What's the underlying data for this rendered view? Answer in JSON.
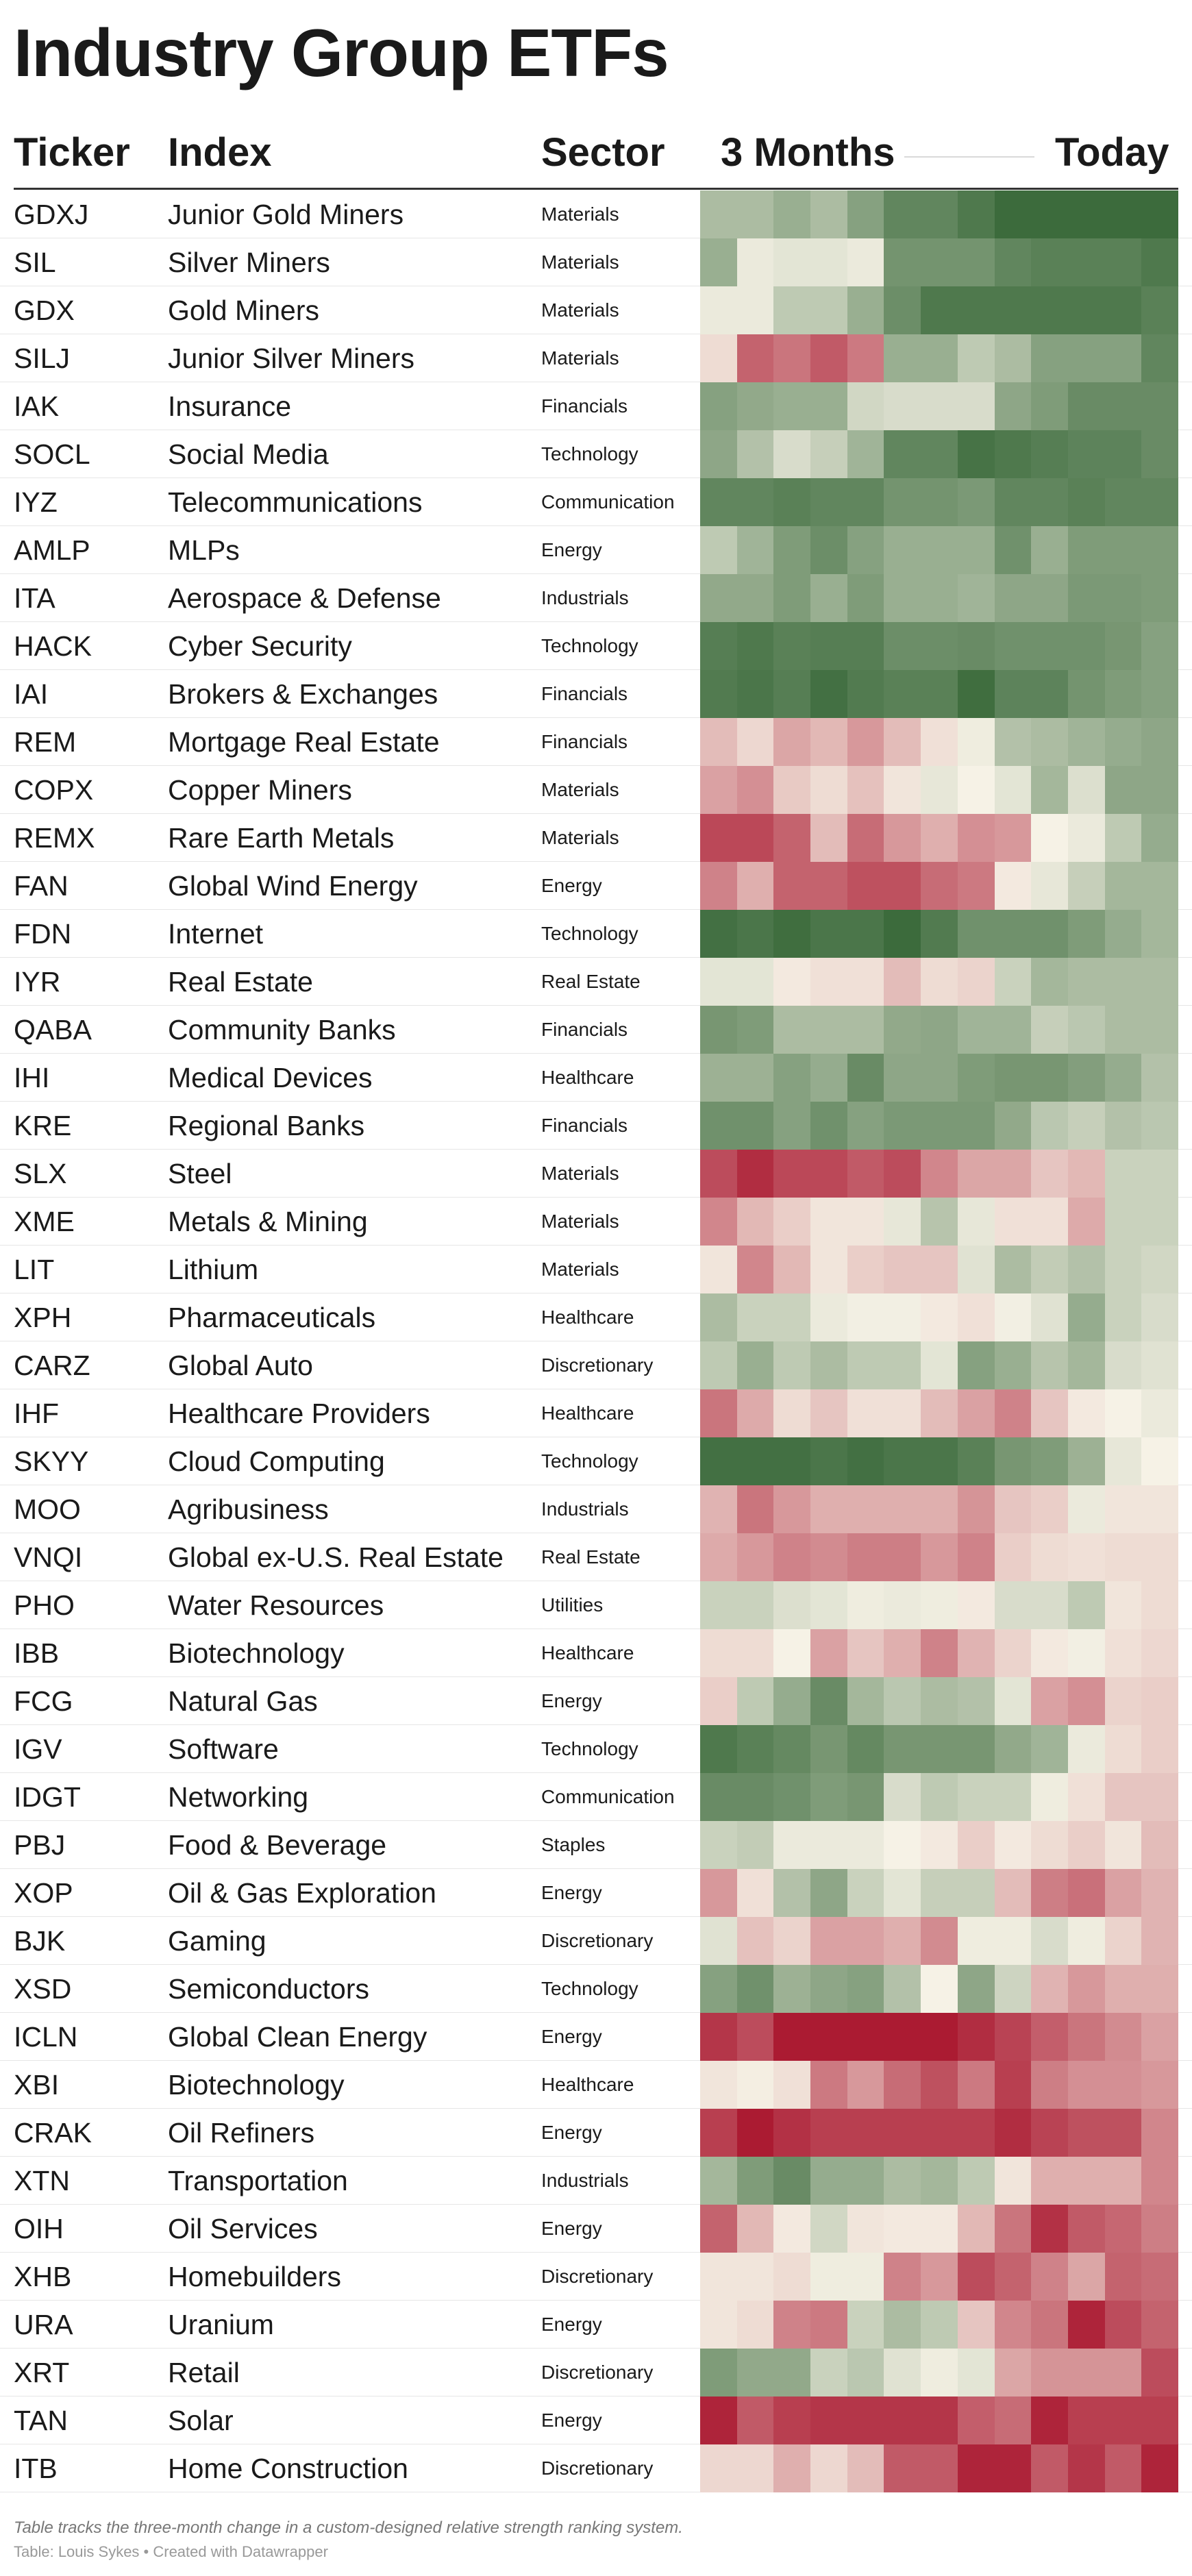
{
  "title": "Industry Group ETFs",
  "header": {
    "ticker": "Ticker",
    "index": "Index",
    "sector": "Sector",
    "start": "3 Months",
    "end": "Today"
  },
  "footnote": "Table tracks the three-month change in a custom-designed relative strength ranking system.",
  "credit": "Table: Louis Sykes • Created with Datawrapper",
  "chart_data": {
    "type": "heatmap",
    "x_start_label": "3 Months",
    "x_end_label": "Today",
    "periods": 13,
    "value_scale": {
      "min": 0,
      "max": 10,
      "low_color": "#a8122b",
      "mid_color": "#f6f2e6",
      "high_color": "#3c6b3c"
    },
    "rows": [
      {
        "ticker": "GDXJ",
        "index": "Junior Gold Miners",
        "sector": "Materials",
        "values": [
          7,
          7,
          7.5,
          7,
          8,
          9,
          9,
          9.5,
          10,
          10,
          10,
          10,
          10
        ]
      },
      {
        "ticker": "SIL",
        "index": "Silver Miners",
        "sector": "Materials",
        "values": [
          7.5,
          5.3,
          5.5,
          5.5,
          5.3,
          8.5,
          8.5,
          8.5,
          9,
          9.2,
          9.2,
          9.2,
          9.5
        ]
      },
      {
        "ticker": "GDX",
        "index": "Gold Miners",
        "sector": "Materials",
        "values": [
          5.3,
          5.3,
          6.5,
          6.5,
          7.5,
          8.7,
          9.5,
          9.5,
          9.5,
          9.5,
          9.5,
          9.5,
          9.2
        ]
      },
      {
        "ticker": "SILJ",
        "index": "Junior Silver Miners",
        "sector": "Materials",
        "values": [
          4.5,
          1.8,
          2.2,
          1.6,
          2.3,
          7.5,
          7.5,
          6.5,
          7,
          8,
          8,
          8,
          9
        ]
      },
      {
        "ticker": "IAK",
        "index": "Insurance",
        "sector": "Financials",
        "values": [
          8,
          7.7,
          7.5,
          7.5,
          6,
          5.8,
          5.8,
          5.8,
          7.8,
          8.2,
          8.8,
          8.8,
          8.8
        ]
      },
      {
        "ticker": "SOCL",
        "index": "Social Media",
        "sector": "Technology",
        "values": [
          7.8,
          6.8,
          5.8,
          6.3,
          7.3,
          9,
          9,
          9.7,
          9.5,
          9.3,
          9.1,
          9.1,
          8.8
        ]
      },
      {
        "ticker": "IYZ",
        "index": "Telecommunications",
        "sector": "Communication",
        "values": [
          9,
          9,
          9.2,
          9,
          9,
          8.5,
          8.5,
          8.3,
          9,
          9,
          9.2,
          9,
          9
        ]
      },
      {
        "ticker": "AMLP",
        "index": "MLPs",
        "sector": "Energy",
        "values": [
          6.5,
          7.3,
          8.2,
          8.7,
          8,
          7.5,
          7.5,
          7.5,
          8.6,
          7.5,
          8.2,
          8.2,
          8.2
        ]
      },
      {
        "ticker": "ITA",
        "index": "Aerospace & Defense",
        "sector": "Industrials",
        "values": [
          7.7,
          7.7,
          8.2,
          7.5,
          8.2,
          7.5,
          7.5,
          7.3,
          7.8,
          7.8,
          8.3,
          8.3,
          8.2
        ]
      },
      {
        "ticker": "HACK",
        "index": "Cyber Security",
        "sector": "Technology",
        "values": [
          9.3,
          9.5,
          9.2,
          9.3,
          9.3,
          8.7,
          8.7,
          8.8,
          8.6,
          8.6,
          8.6,
          8.4,
          8
        ]
      },
      {
        "ticker": "IAI",
        "index": "Brokers & Exchanges",
        "sector": "Financials",
        "values": [
          9.4,
          9.6,
          9.3,
          9.8,
          9.4,
          9.2,
          9.2,
          9.9,
          9.1,
          9.1,
          8.5,
          8.2,
          8
        ]
      },
      {
        "ticker": "REM",
        "index": "Mortgage Real Estate",
        "sector": "Financials",
        "values": [
          3.8,
          4.4,
          3.3,
          3.7,
          3,
          3.8,
          4.6,
          5.2,
          6.8,
          7,
          7.3,
          7.6,
          7.8
        ]
      },
      {
        "ticker": "COPX",
        "index": "Copper Miners",
        "sector": "Materials",
        "values": [
          3.2,
          2.8,
          4.1,
          4.5,
          3.9,
          4.7,
          5.4,
          5,
          5.5,
          7.2,
          5.7,
          7.8,
          7.8
        ]
      },
      {
        "ticker": "REMX",
        "index": "Rare Earth Metals",
        "sector": "Materials",
        "values": [
          1.2,
          1.2,
          1.8,
          3.8,
          2,
          3,
          3.5,
          2.8,
          3,
          5,
          5.3,
          6.5,
          7.6
        ]
      },
      {
        "ticker": "FAN",
        "index": "Global Wind Energy",
        "sector": "Energy",
        "values": [
          2.5,
          3.5,
          1.8,
          1.8,
          1.4,
          1.4,
          2,
          2.3,
          4.8,
          5.4,
          6.3,
          7.2,
          7.2
        ]
      },
      {
        "ticker": "FDN",
        "index": "Internet",
        "sector": "Technology",
        "values": [
          9.8,
          9.6,
          9.9,
          9.6,
          9.6,
          10,
          9.4,
          8.6,
          8.6,
          8.6,
          8.2,
          7.6,
          7.2
        ]
      },
      {
        "ticker": "IYR",
        "index": "Real Estate",
        "sector": "Real Estate",
        "values": [
          5.5,
          5.5,
          4.8,
          4.6,
          4.6,
          3.8,
          4.5,
          4.3,
          6.2,
          7.2,
          7,
          7,
          7
        ]
      },
      {
        "ticker": "QABA",
        "index": "Community Banks",
        "sector": "Financials",
        "values": [
          8.4,
          8.2,
          7,
          7,
          7,
          7.7,
          7.8,
          7.3,
          7.3,
          6.3,
          6.6,
          7,
          7
        ]
      },
      {
        "ticker": "IHI",
        "index": "Medical Devices",
        "sector": "Healthcare",
        "values": [
          7.4,
          7.4,
          8,
          7.6,
          8.8,
          7.8,
          7.8,
          8.2,
          8.4,
          8.4,
          8.1,
          7.6,
          6.8
        ]
      },
      {
        "ticker": "KRE",
        "index": "Regional Banks",
        "sector": "Financials",
        "values": [
          8.6,
          8.6,
          8,
          8.6,
          8,
          8.3,
          8.3,
          8.3,
          7.7,
          6.6,
          6.3,
          6.8,
          6.6
        ]
      },
      {
        "ticker": "SLX",
        "index": "Steel",
        "sector": "Materials",
        "values": [
          1.3,
          0.6,
          1.2,
          1.2,
          1.6,
          1.3,
          2.6,
          3.3,
          3.3,
          4,
          3.7,
          6.2,
          6.2
        ]
      },
      {
        "ticker": "XME",
        "index": "Metals & Mining",
        "sector": "Materials",
        "values": [
          2.6,
          3.7,
          4.2,
          4.7,
          4.7,
          5.4,
          6.7,
          5.4,
          4.6,
          4.6,
          3.4,
          6.2,
          6.2
        ]
      },
      {
        "ticker": "LIT",
        "index": "Lithium",
        "sector": "Materials",
        "values": [
          4.7,
          2.6,
          3.7,
          4.7,
          4.2,
          4,
          4,
          5.6,
          7,
          6.4,
          6.8,
          6.2,
          6
        ]
      },
      {
        "ticker": "XPH",
        "index": "Pharmaceuticals",
        "sector": "Healthcare",
        "values": [
          7,
          6.2,
          6.2,
          5.3,
          5.1,
          5.1,
          4.8,
          4.6,
          5.1,
          5.6,
          7.6,
          6.2,
          5.8
        ]
      },
      {
        "ticker": "CARZ",
        "index": "Global Auto",
        "sector": "Discretionary",
        "values": [
          6.5,
          7.5,
          6.5,
          7,
          6.5,
          6.5,
          5.5,
          8,
          7.5,
          6.7,
          7.2,
          5.8,
          5.6
        ]
      },
      {
        "ticker": "IHF",
        "index": "Healthcare Providers",
        "sector": "Healthcare",
        "values": [
          2.2,
          3.4,
          4.5,
          4,
          4.6,
          4.6,
          3.8,
          3.2,
          2.5,
          4,
          4.8,
          5,
          5.3
        ]
      },
      {
        "ticker": "SKYY",
        "index": "Cloud Computing",
        "sector": "Technology",
        "values": [
          9.8,
          9.8,
          9.8,
          9.6,
          9.8,
          9.6,
          9.6,
          9.2,
          8.4,
          8.2,
          7.4,
          5.4,
          5
        ]
      },
      {
        "ticker": "MOO",
        "index": "Agribusiness",
        "sector": "Industrials",
        "values": [
          3.6,
          2.2,
          3,
          3.5,
          3.5,
          3.5,
          3.5,
          2.9,
          4,
          4.2,
          5.3,
          4.7,
          4.7
        ]
      },
      {
        "ticker": "VNQI",
        "index": "Global ex-U.S. Real Estate",
        "sector": "Real Estate",
        "values": [
          3.4,
          3,
          2.5,
          2.7,
          2.4,
          2.4,
          3,
          2.5,
          4.2,
          4.5,
          4.6,
          4.5,
          4.5
        ]
      },
      {
        "ticker": "PHO",
        "index": "Water Resources",
        "sector": "Utilities",
        "values": [
          6.2,
          6.2,
          5.7,
          5.5,
          5.2,
          5.3,
          5.2,
          4.8,
          5.8,
          5.8,
          6.5,
          4.7,
          4.5
        ]
      },
      {
        "ticker": "IBB",
        "index": "Biotechnology",
        "sector": "Healthcare",
        "values": [
          4.5,
          4.5,
          5,
          3.2,
          4,
          3.5,
          2.5,
          3.6,
          4.3,
          4.8,
          5.1,
          4.6,
          4.4
        ]
      },
      {
        "ticker": "FCG",
        "index": "Natural Gas",
        "sector": "Energy",
        "values": [
          4.2,
          6.5,
          7.6,
          8.8,
          7.2,
          6.6,
          7,
          6.8,
          5.5,
          3.2,
          2.8,
          4.3,
          4.2
        ]
      },
      {
        "ticker": "IGV",
        "index": "Software",
        "sector": "Technology",
        "values": [
          9.5,
          9.2,
          8.9,
          8.4,
          8.9,
          8.4,
          8.4,
          8.4,
          7.7,
          7.3,
          5.3,
          4.5,
          4.2
        ]
      },
      {
        "ticker": "IDGT",
        "index": "Networking",
        "sector": "Communication",
        "values": [
          8.8,
          8.8,
          8.6,
          8.2,
          8.4,
          5.8,
          6.5,
          6.2,
          6.2,
          5.2,
          4.6,
          4,
          4
        ]
      },
      {
        "ticker": "PBJ",
        "index": "Food & Beverage",
        "sector": "Staples",
        "values": [
          6.2,
          6.4,
          5.3,
          5.3,
          5.3,
          5,
          4.8,
          4.2,
          4.8,
          4.5,
          4.2,
          4.7,
          3.8
        ]
      },
      {
        "ticker": "XOP",
        "index": "Oil & Gas Exploration",
        "sector": "Energy",
        "values": [
          3,
          4.6,
          6.8,
          7.8,
          6.2,
          5.5,
          6.3,
          6.3,
          3.8,
          2.4,
          2.1,
          3.2,
          3.6
        ]
      },
      {
        "ticker": "BJK",
        "index": "Gaming",
        "sector": "Discretionary",
        "values": [
          5.6,
          3.9,
          4.3,
          3.2,
          3.2,
          3.5,
          2.7,
          5.2,
          5.2,
          5.8,
          5.2,
          4.3,
          3.6
        ]
      },
      {
        "ticker": "XSD",
        "index": "Semiconductors",
        "sector": "Technology",
        "values": [
          8,
          8.6,
          7.4,
          7.8,
          8,
          6.8,
          5,
          7.8,
          6.1,
          3.6,
          3,
          3.5,
          3.5
        ]
      },
      {
        "ticker": "ICLN",
        "index": "Global Clean Energy",
        "sector": "Energy",
        "values": [
          0.8,
          1.3,
          0.2,
          0.2,
          0.2,
          0.2,
          0.2,
          0.6,
          1.1,
          1.7,
          2.2,
          2.7,
          3.2
        ]
      },
      {
        "ticker": "XBI",
        "index": "Biotechnology",
        "sector": "Healthcare",
        "values": [
          4.7,
          4.9,
          4.6,
          2.3,
          3,
          2,
          1.4,
          2.3,
          1,
          2.4,
          2.8,
          2.8,
          3
        ]
      },
      {
        "ticker": "CRAK",
        "index": "Oil Refiners",
        "sector": "Energy",
        "values": [
          1,
          0.2,
          0.7,
          1,
          1,
          1,
          1,
          1,
          0.6,
          1.1,
          1.4,
          1.4,
          2.6
        ]
      },
      {
        "ticker": "XTN",
        "index": "Transportation",
        "sector": "Industrials",
        "values": [
          7.2,
          8.2,
          8.8,
          7.6,
          7.6,
          7,
          7.2,
          6.5,
          4.7,
          3.5,
          3.5,
          3.5,
          2.6
        ]
      },
      {
        "ticker": "OIH",
        "index": "Oil Services",
        "sector": "Energy",
        "values": [
          1.8,
          3.7,
          4.8,
          6,
          4.7,
          4.8,
          4.8,
          3.7,
          2.2,
          0.7,
          1.6,
          1.9,
          2.4
        ]
      },
      {
        "ticker": "XHB",
        "index": "Homebuilders",
        "sector": "Discretionary",
        "values": [
          4.7,
          4.7,
          4.5,
          5.2,
          5.2,
          2.5,
          3,
          1.3,
          1.8,
          2.5,
          3.3,
          1.8,
          2
        ]
      },
      {
        "ticker": "URA",
        "index": "Uranium",
        "sector": "Energy",
        "values": [
          4.7,
          4.5,
          2.5,
          2.3,
          6.2,
          7,
          6.5,
          4,
          2.6,
          2.2,
          0.4,
          1.3,
          1.8
        ]
      },
      {
        "ticker": "XRT",
        "index": "Retail",
        "sector": "Discretionary",
        "values": [
          8.2,
          7.7,
          7.7,
          6.2,
          6.6,
          5.6,
          5.2,
          5.5,
          3.3,
          2.9,
          2.9,
          2.9,
          1.3
        ]
      },
      {
        "ticker": "TAN",
        "index": "Solar",
        "sector": "Energy",
        "values": [
          0.4,
          1.6,
          1,
          0.8,
          0.8,
          0.8,
          0.8,
          1.7,
          2,
          0.4,
          1,
          1,
          1
        ]
      },
      {
        "ticker": "ITB",
        "index": "Home Construction",
        "sector": "Discretionary",
        "values": [
          4.4,
          4.4,
          3.5,
          4.4,
          3.8,
          1.6,
          1.6,
          0.4,
          0.4,
          1.6,
          0.8,
          1.6,
          0.4
        ]
      }
    ]
  }
}
